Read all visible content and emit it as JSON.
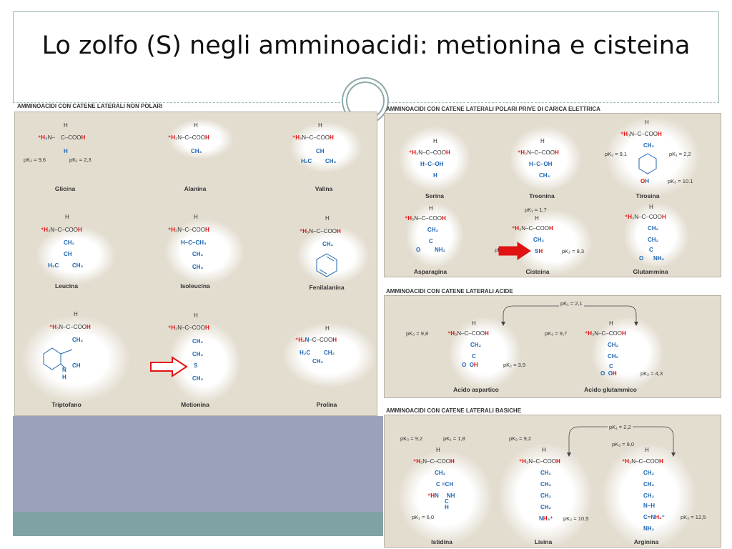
{
  "title": "Lo zolfo (S) negli amminoacidi: metionina e cisteina",
  "sections": {
    "nonpolar": "AMMINOACIDI CON CATENE LATERALI NON POLARI",
    "polar": "AMMINOACIDI CON CATENE LATERALI POLARI PRIVE DI CARICA ELETTRICA",
    "acidic": "AMMINOACIDI CON CATENE LATERALI ACIDE",
    "basic": "AMMINOACIDI CON CATENE LATERALI BASICHE"
  },
  "names": {
    "glicina": "Glicina",
    "alanina": "Alanina",
    "valina": "Valina",
    "leucina": "Leucina",
    "isoleucina": "Isoleucina",
    "fenilalanina": "Fenilalanina",
    "triptofano": "Triptofano",
    "metionina": "Metionina",
    "prolina": "Prolina",
    "serina": "Serina",
    "treonina": "Treonina",
    "tirosina": "Tirosina",
    "asparagina": "Asparagina",
    "cisteina": "Cisteina",
    "glutammina": "Glutammina",
    "aspartico": "Acido aspartico",
    "glutammico": "Acido glutammico",
    "istidina": "Istidina",
    "lisina": "Lisina",
    "arginina": "Arginina"
  },
  "pk": {
    "gly_pk2": "pK₂ = 9,6",
    "gly_pk1": "pK₁ = 2,3",
    "tyr_pk2": "pK₂ = 9,1",
    "tyr_pk1": "pK₁ = 2,2",
    "tyr_pk3": "pK₃ = 10.1",
    "cys_pk1": "pK₁ = 1,7",
    "cys_pk3": "pK₃ = 10,8",
    "cys_pk2": "pK₂ = 8,3",
    "acid_pk1": "pK₁ = 2,1",
    "asp_pk3": "pK₃ = 9,8",
    "asp_pk2": "pK₂ = 3,9",
    "glu_pk3": "pK₃ = 9,7",
    "glu_pk2": "pK₂ = 4,3",
    "his_pk3": "pK₃ = 9,2",
    "his_pk1": "pK₁ = 1,8",
    "his_pk2": "pK₂ = 6,0",
    "lys_pk2": "pK₂ = 9,2",
    "lys_pk3": "pK₃ = 10,5",
    "arg_pk1": "pK₁ = 2,2",
    "arg_pk2": "pK₂ = 9,0",
    "arg_pk3": "pK₃ = 12,5"
  },
  "colors": {
    "accent_red": "#e01212",
    "side_chain_blue": "#1f66b1",
    "panel": "#e3ddd0"
  }
}
